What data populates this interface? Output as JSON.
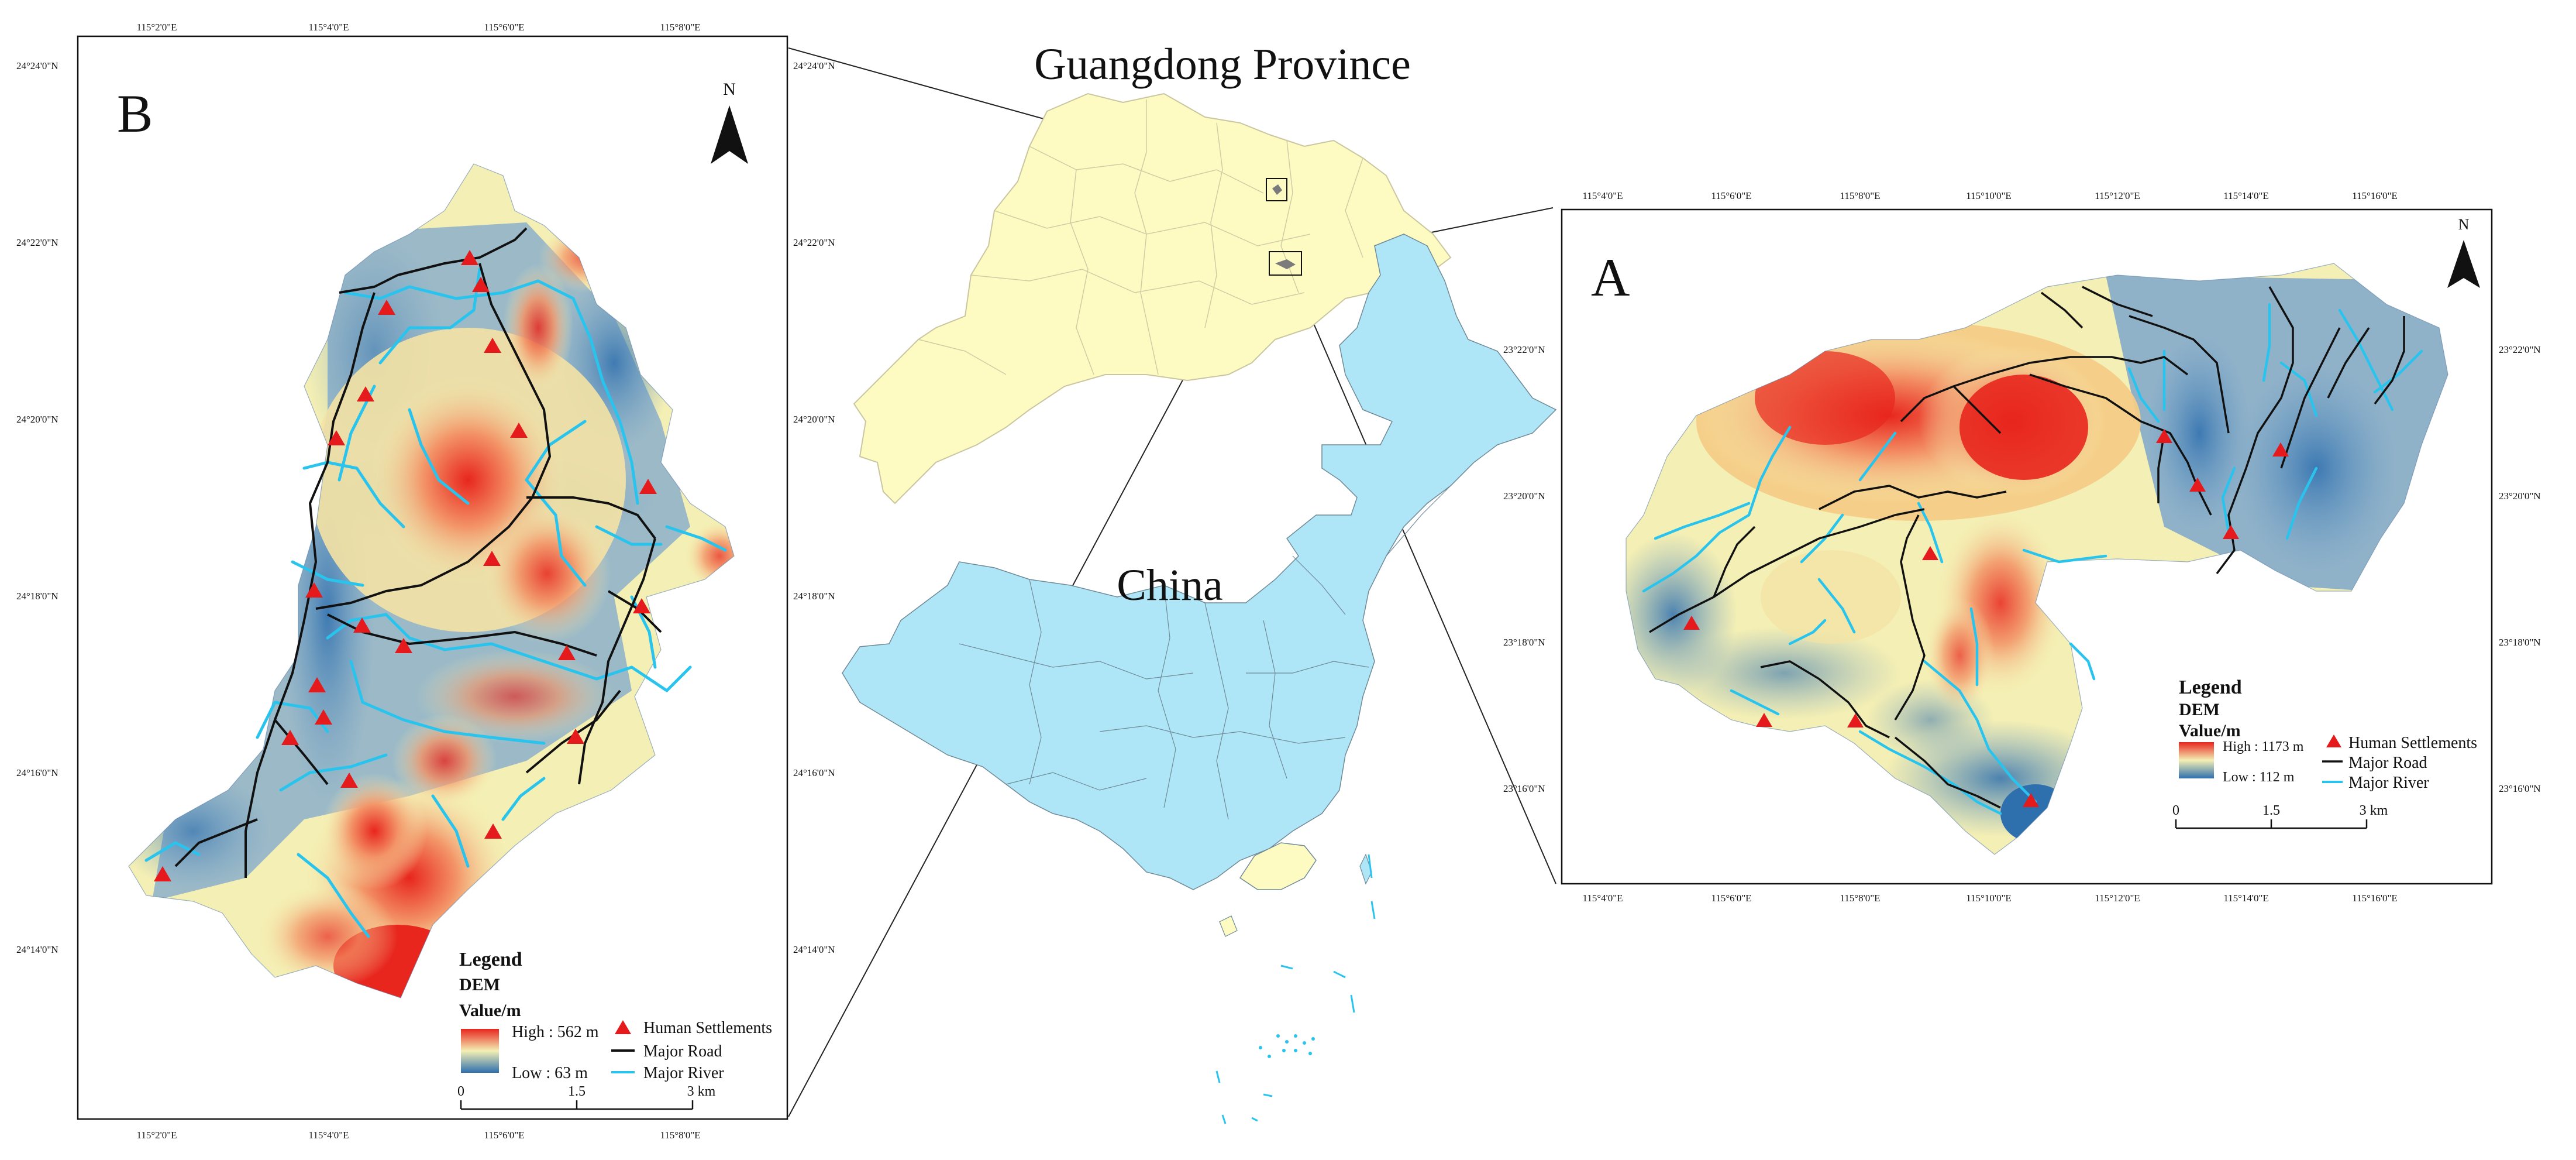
{
  "main_map": {
    "province_title": "Guangdong Province",
    "country_title": "China"
  },
  "panel_b": {
    "label": "B",
    "north": "N",
    "top_ticks": [
      "115°2'0\"E",
      "115°4'0\"E",
      "115°6'0\"E",
      "115°8'0\"E"
    ],
    "bottom_ticks": [
      "115°2'0\"E",
      "115°4'0\"E",
      "115°6'0\"E",
      "115°8'0\"E"
    ],
    "left_ticks": [
      "24°24'0\"N",
      "24°22'0\"N",
      "24°20'0\"N",
      "24°18'0\"N",
      "24°16'0\"N",
      "24°14'0\"N"
    ],
    "right_ticks": [
      "24°24'0\"N",
      "24°22'0\"N",
      "24°20'0\"N",
      "24°18'0\"N",
      "24°16'0\"N",
      "24°14'0\"N"
    ],
    "legend": {
      "title": "Legend",
      "layer": "DEM",
      "value_label": "Value/m",
      "high": "High : 562 m",
      "low": "Low : 63 m",
      "settlements": "Human Settlements",
      "road": "Major Road",
      "river": "Major River",
      "scale": [
        "0",
        "1.5",
        "3 km"
      ]
    }
  },
  "panel_a": {
    "label": "A",
    "north": "N",
    "top_ticks": [
      "115°4'0\"E",
      "115°6'0\"E",
      "115°8'0\"E",
      "115°10'0\"E",
      "115°12'0\"E",
      "115°14'0\"E",
      "115°16'0\"E"
    ],
    "bottom_ticks": [
      "115°4'0\"E",
      "115°6'0\"E",
      "115°8'0\"E",
      "115°10'0\"E",
      "115°12'0\"E",
      "115°14'0\"E",
      "115°16'0\"E"
    ],
    "left_ticks": [
      "23°22'0\"N",
      "23°20'0\"N",
      "23°18'0\"N",
      "23°16'0\"N"
    ],
    "right_ticks": [
      "23°22'0\"N",
      "23°20'0\"N",
      "23°18'0\"N",
      "23°16'0\"N"
    ],
    "legend": {
      "title": "Legend",
      "layer": "DEM",
      "value_label": "Value/m",
      "high": "High : 1173 m",
      "low": "Low : 112 m",
      "settlements": "Human Settlements",
      "road": "Major Road",
      "river": "Major River",
      "scale": [
        "0",
        "1.5",
        "3 km"
      ]
    }
  },
  "colors": {
    "dem_high": "#e8261e",
    "dem_mid": "#f4efb4",
    "dem_low": "#2e6fae",
    "river": "#29c4ee",
    "road": "#111111",
    "settlement": "#e41a1c",
    "guangdong_fill": "#fdfbc2",
    "china_fill": "#aee6f8"
  }
}
